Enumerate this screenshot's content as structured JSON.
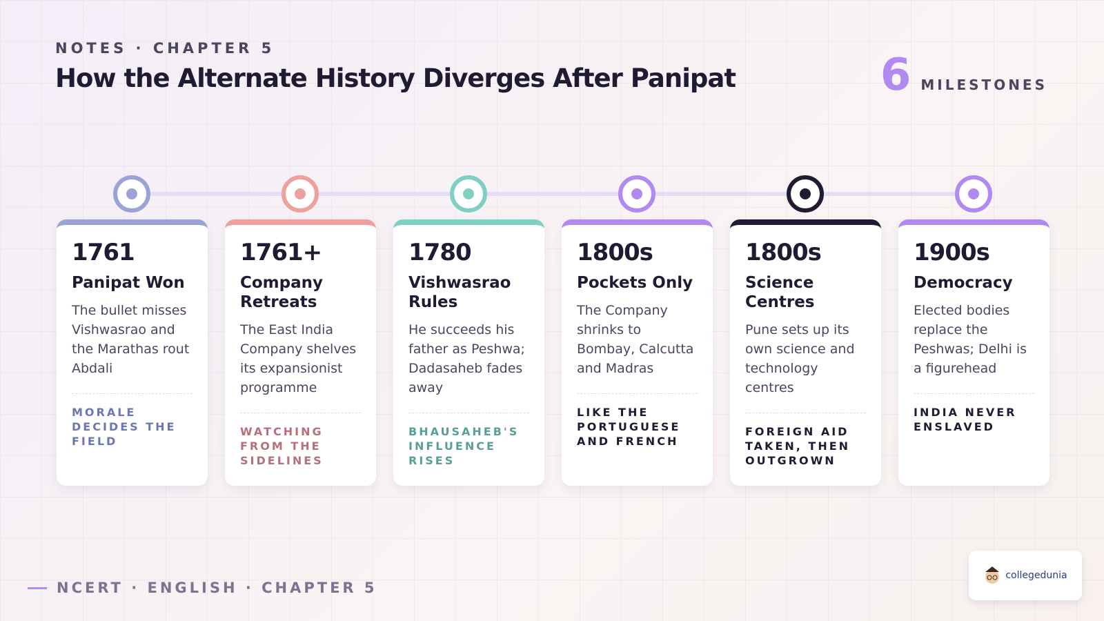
{
  "header": {
    "kicker": "NOTES · CHAPTER 5",
    "title": "How the Alternate History Diverges After Panipat"
  },
  "badge": {
    "count": "6",
    "label": "MILESTONES"
  },
  "milestones": [
    {
      "year": "1761",
      "title": "Panipat Won",
      "text": "The bullet misses Vishwasrao and the Marathas rout Abdali",
      "tag": "MORALE DECIDES THE FIELD"
    },
    {
      "year": "1761+",
      "title": "Company Retreats",
      "text": "The East India Company shelves its expansionist programme",
      "tag": "WATCHING FROM THE SIDELINES"
    },
    {
      "year": "1780",
      "title": "Vishwasrao Rules",
      "text": "He succeeds his father as Peshwa; Dadasaheb fades away",
      "tag": "BHAUSAHEB'S INFLUENCE RISES"
    },
    {
      "year": "1800s",
      "title": "Pockets Only",
      "text": "The Company shrinks to Bombay, Calcutta and Madras",
      "tag": "LIKE THE PORTUGUESE AND FRENCH"
    },
    {
      "year": "1800s",
      "title": "Science Centres",
      "text": "Pune sets up its own science and technology centres",
      "tag": "FOREIGN AID TAKEN, THEN OUTGROWN"
    },
    {
      "year": "1900s",
      "title": "Democracy",
      "text": "Elected bodies replace the Peshwas; Delhi is a figurehead",
      "tag": "INDIA NEVER ENSLAVED"
    }
  ],
  "footer": {
    "text": "NCERT · ENGLISH · CHAPTER 5"
  },
  "logo": {
    "text": "collegedunia"
  }
}
